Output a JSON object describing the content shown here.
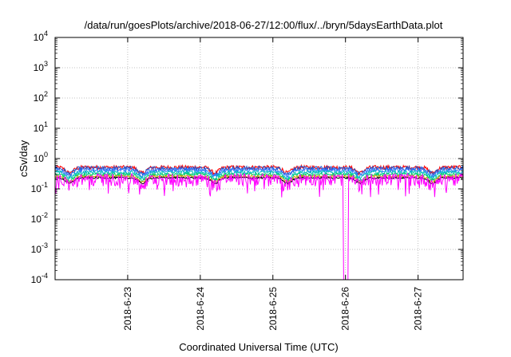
{
  "chart_data": {
    "type": "line",
    "title": "/data/run/goesPlots/archive/2018-06-27/12:00/flux/../bryn/5daysEarthData.plot",
    "xlabel": "Coordinated Universal Time (UTC)",
    "ylabel": "cSv/day",
    "yscale": "log",
    "ylim": [
      0.0001,
      10000
    ],
    "y_ticks": [
      {
        "base": "10",
        "exp": "-4"
      },
      {
        "base": "10",
        "exp": "-3"
      },
      {
        "base": "10",
        "exp": "-2"
      },
      {
        "base": "10",
        "exp": "-1"
      },
      {
        "base": "10",
        "exp": "0"
      },
      {
        "base": "10",
        "exp": "1"
      },
      {
        "base": "10",
        "exp": "2"
      },
      {
        "base": "10",
        "exp": "3"
      },
      {
        "base": "10",
        "exp": "4"
      }
    ],
    "xlim_days": [
      0.0,
      5.62
    ],
    "x_ticks": [
      {
        "label": "2018-6-23",
        "day": 1.0
      },
      {
        "label": "2018-6-24",
        "day": 2.0
      },
      {
        "label": "2018-6-25",
        "day": 3.0
      },
      {
        "label": "2018-6-26",
        "day": 4.0
      },
      {
        "label": "2018-6-27",
        "day": 5.0
      }
    ],
    "grid": true,
    "x_start_date": "2018-6-22",
    "series": [
      {
        "color": "#ff0000",
        "base": 0.55,
        "amp": 0.14
      },
      {
        "color": "#2255cc",
        "base": 0.5,
        "amp": 0.16
      },
      {
        "color": "#3377ff",
        "base": 0.44,
        "amp": 0.15
      },
      {
        "color": "#00bfbf",
        "base": 0.38,
        "amp": 0.13
      },
      {
        "color": "#00cc66",
        "base": 0.33,
        "amp": 0.1
      },
      {
        "color": "#d4a000",
        "base": 0.3,
        "amp": 0.07
      },
      {
        "color": "#000000",
        "base": 0.27,
        "amp": 0.06
      },
      {
        "color": "#ff00ff",
        "base": 0.22,
        "amp": 0.35,
        "dip_day": 4.0
      }
    ]
  }
}
